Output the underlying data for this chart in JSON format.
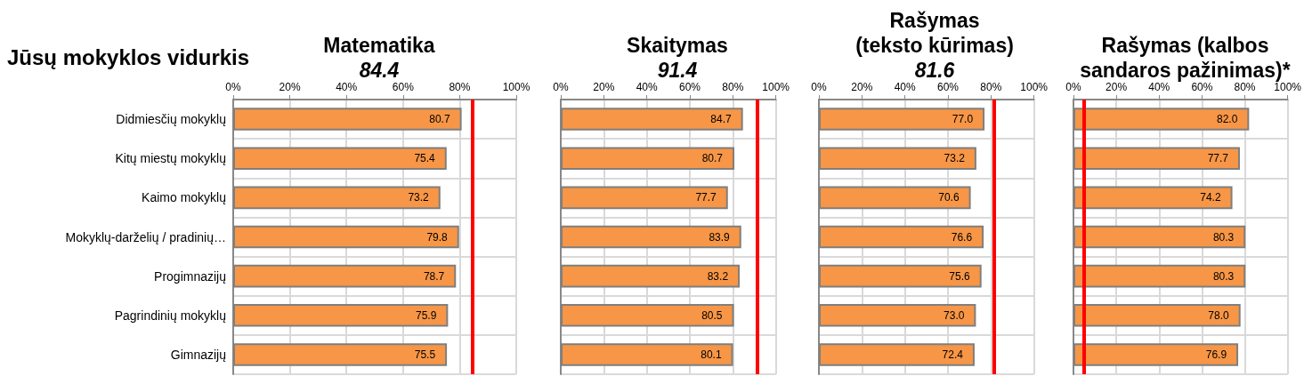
{
  "chart_data": [
    {
      "type": "bar",
      "orientation": "horizontal",
      "title": "Matematika",
      "subtitle": "84.4",
      "annotations": [
        "Jūsų mokyklos vidurkis"
      ],
      "categories": [
        "Didmiesčių mokyklų",
        "Kitų miestų mokyklų",
        "Kaimo mokyklų",
        "Mokyklų-darželių / pradinių…",
        "Progimnazijų",
        "Pagrindinių mokyklų",
        "Gimnazijų"
      ],
      "values": [
        80.7,
        75.4,
        73.2,
        79.8,
        78.7,
        75.9,
        75.5
      ],
      "value_labels": [
        "80.7",
        "75.4",
        "73.2",
        "79.8",
        "78.7",
        "75.9",
        "75.5"
      ],
      "color": "#f79646",
      "xlim": [
        0,
        100
      ],
      "xticks": [
        {
          "value": 0,
          "label": "0%"
        },
        {
          "value": 20,
          "label": "20%"
        },
        {
          "value": 40,
          "label": "40%"
        },
        {
          "value": 60,
          "label": "60%"
        },
        {
          "value": 80,
          "label": "80%"
        },
        {
          "value": 100,
          "label": "100%"
        }
      ],
      "grid": true,
      "ref_lines": [
        {
          "axis": "x",
          "value": 84.4,
          "color": "#ff0000"
        }
      ]
    },
    {
      "type": "bar",
      "orientation": "horizontal",
      "title": "Skaitymas",
      "subtitle": "91.4",
      "categories": [
        null,
        null,
        null,
        null,
        null,
        null,
        null
      ],
      "values": [
        84.7,
        80.7,
        77.7,
        83.9,
        83.2,
        80.5,
        80.1
      ],
      "value_labels": [
        "84.7",
        "80.7",
        "77.7",
        "83.9",
        "83.2",
        "80.5",
        "80.1"
      ],
      "color": "#f79646",
      "xlim": [
        0,
        100
      ],
      "xticks": [
        {
          "value": 0,
          "label": "0%"
        },
        {
          "value": 20,
          "label": "20%"
        },
        {
          "value": 40,
          "label": "40%"
        },
        {
          "value": 60,
          "label": "60%"
        },
        {
          "value": 80,
          "label": "80%"
        },
        {
          "value": 100,
          "label": "100%"
        }
      ],
      "grid": true,
      "ref_lines": [
        {
          "axis": "x",
          "value": 91.4,
          "color": "#ff0000"
        }
      ]
    },
    {
      "type": "bar",
      "orientation": "horizontal",
      "title": "Rašymas\n(teksto kūrimas)",
      "subtitle": "81.6",
      "categories": [
        null,
        null,
        null,
        null,
        null,
        null,
        null
      ],
      "values": [
        77.0,
        73.2,
        70.6,
        76.6,
        75.6,
        73.0,
        72.4
      ],
      "value_labels": [
        "77.0",
        "73.2",
        "70.6",
        "76.6",
        "75.6",
        "73.0",
        "72.4"
      ],
      "color": "#f79646",
      "xlim": [
        0,
        100
      ],
      "xticks": [
        {
          "value": 0,
          "label": "0%"
        },
        {
          "value": 20,
          "label": "20%"
        },
        {
          "value": 40,
          "label": "40%"
        },
        {
          "value": 60,
          "label": "60%"
        },
        {
          "value": 80,
          "label": "80%"
        },
        {
          "value": 100,
          "label": "100%"
        }
      ],
      "grid": true,
      "ref_lines": [
        {
          "axis": "x",
          "value": 81.6,
          "color": "#ff0000"
        }
      ]
    },
    {
      "type": "bar",
      "orientation": "horizontal",
      "title": "Rašymas (kalbos\nsandaros pažinimas)*",
      "categories": [
        null,
        null,
        null,
        null,
        null,
        null,
        null
      ],
      "values": [
        82.0,
        77.7,
        74.2,
        80.3,
        80.3,
        78.0,
        76.9
      ],
      "value_labels": [
        "82.0",
        "77.7",
        "74.2",
        "80.3",
        "80.3",
        "78.0",
        "76.9"
      ],
      "color": "#f79646",
      "xlim": [
        0,
        100
      ],
      "xticks": [
        {
          "value": 0,
          "label": "0%"
        },
        {
          "value": 20,
          "label": "20%"
        },
        {
          "value": 40,
          "label": "40%"
        },
        {
          "value": 60,
          "label": "60%"
        },
        {
          "value": 80,
          "label": "80%"
        },
        {
          "value": 100,
          "label": "100%"
        }
      ],
      "grid": true,
      "ref_lines": [
        {
          "axis": "x",
          "value": 5,
          "color": "#ff0000"
        }
      ]
    }
  ]
}
